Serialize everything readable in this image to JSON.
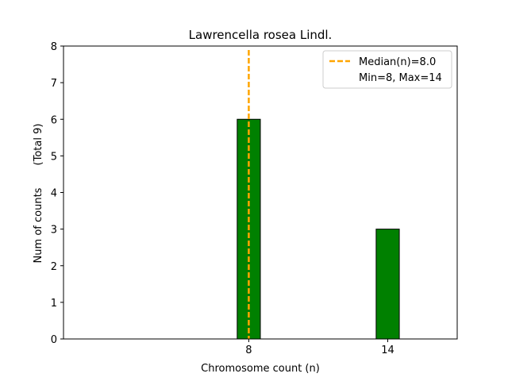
{
  "chart_data": {
    "type": "bar",
    "title": "Lawrencella rosea Lindl.",
    "xlabel": "Chromosome count (n)",
    "ylabel": "Num of counts",
    "ylabel_note": "(Total 9)",
    "categories": [
      "8",
      "14"
    ],
    "x": [
      8,
      14
    ],
    "values": [
      6,
      3
    ],
    "bar_color": "#008000",
    "bar_edge_color": "#000000",
    "xlim": [
      0,
      17
    ],
    "ylim": [
      0,
      8
    ],
    "yticks": [
      0,
      1,
      2,
      3,
      4,
      5,
      6,
      7,
      8
    ],
    "xticks": [
      8,
      14
    ],
    "median": {
      "value": 8.0,
      "color": "#FFA500",
      "label": "Median(n)=8.0"
    },
    "minmax_label": "Min=8, Max=14",
    "legend_position": "upper right",
    "grid": false
  }
}
